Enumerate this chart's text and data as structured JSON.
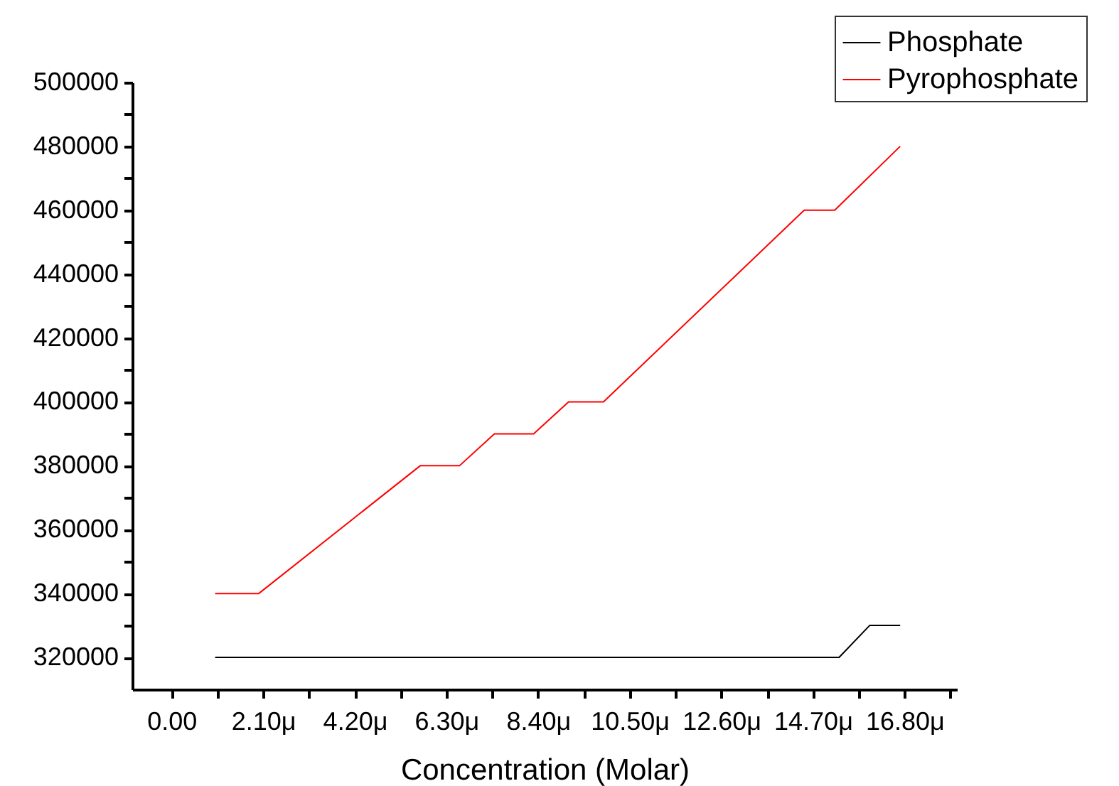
{
  "chart_data": {
    "type": "line",
    "xlabel": "Concentration (Molar)",
    "xlim": [
      -0.9,
      18.0
    ],
    "xticks": [
      {
        "value": 0,
        "label": "0.00"
      },
      {
        "value": 2.1,
        "label": "2.10μ"
      },
      {
        "value": 4.2,
        "label": "4.20μ"
      },
      {
        "value": 6.3,
        "label": "6.30μ"
      },
      {
        "value": 8.4,
        "label": "8.40μ"
      },
      {
        "value": 10.5,
        "label": "10.50μ"
      },
      {
        "value": 12.6,
        "label": "12.60μ"
      },
      {
        "value": 14.7,
        "label": "14.70μ"
      },
      {
        "value": 16.8,
        "label": "16.80μ"
      },
      {
        "value": 1.05,
        "label": null
      },
      {
        "value": 3.15,
        "label": null
      },
      {
        "value": 5.25,
        "label": null
      },
      {
        "value": 7.35,
        "label": null
      },
      {
        "value": 9.45,
        "label": null
      },
      {
        "value": 11.55,
        "label": null
      },
      {
        "value": 13.65,
        "label": null
      },
      {
        "value": 15.75,
        "label": null
      },
      {
        "value": 17.85,
        "label": null
      }
    ],
    "ylim": [
      310000,
      500000
    ],
    "yticks": [
      320000,
      340000,
      360000,
      380000,
      400000,
      420000,
      440000,
      460000,
      480000,
      500000,
      {
        "value": 330000,
        "label": null
      },
      {
        "value": 350000,
        "label": null
      },
      {
        "value": 370000,
        "label": null
      },
      {
        "value": 390000,
        "label": null
      },
      {
        "value": 410000,
        "label": null
      },
      {
        "value": 430000,
        "label": null
      },
      {
        "value": 450000,
        "label": null
      },
      {
        "value": 470000,
        "label": null
      },
      {
        "value": 490000,
        "label": null
      }
    ],
    "legend": "top right",
    "grid": false,
    "series": [
      {
        "name": "Phosphate",
        "color": "#000000",
        "x": [
          1.0,
          15.3,
          16.0,
          16.7
        ],
        "values": [
          320000,
          320000,
          330000,
          330000
        ]
      },
      {
        "name": "Pyrophosphate",
        "color": "#ff0000",
        "x": [
          1.0,
          2.0,
          5.7,
          6.6,
          7.4,
          8.3,
          9.1,
          9.9,
          14.5,
          15.2,
          16.7
        ],
        "values": [
          340000,
          340000,
          380000,
          380000,
          390000,
          390000,
          400000,
          400000,
          460000,
          460000,
          480000
        ]
      }
    ]
  }
}
